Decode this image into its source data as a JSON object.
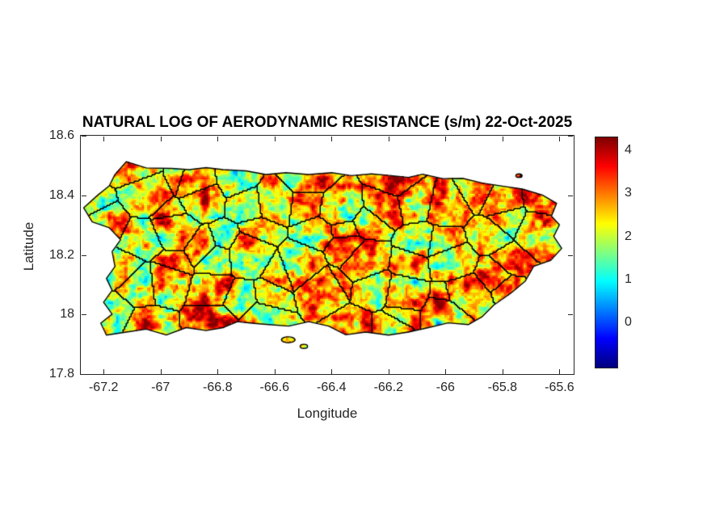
{
  "chart_data": {
    "type": "heatmap",
    "title": "NATURAL LOG OF AERODYNAMIC RESISTANCE (s/m) 22-Oct-2025",
    "date": "22-Oct-2025",
    "quantity": "Natural log of aerodynamic resistance",
    "units": "s/m",
    "xlabel": "Longitude",
    "ylabel": "Latitude",
    "xlim": [
      -67.28,
      -65.55
    ],
    "ylim": [
      17.8,
      18.6
    ],
    "x_ticks": [
      -67.2,
      -67,
      -66.8,
      -66.6,
      -66.4,
      -66.2,
      -66,
      -65.8,
      -65.6
    ],
    "x_tick_labels": [
      "-67.2",
      "-67",
      "-66.8",
      "-66.6",
      "-66.4",
      "-66.2",
      "-66",
      "-65.8",
      "-65.6"
    ],
    "y_ticks": [
      17.8,
      18,
      18.2,
      18.4,
      18.6
    ],
    "y_tick_labels": [
      "17.8",
      "18",
      "18.2",
      "18.4",
      "18.6"
    ],
    "grid": false,
    "region": "Puerto Rico with municipality boundaries",
    "colorbar": {
      "position": "right",
      "ticks": [
        0,
        1,
        2,
        3,
        4
      ],
      "tick_labels": [
        "0",
        "1",
        "2",
        "3",
        "4"
      ],
      "cmin": -1.05,
      "cmax": 4.3,
      "colormap": "jet",
      "stops": [
        "#00008F",
        "#0000FF",
        "#00FFFF",
        "#7FFF7F",
        "#FFFF00",
        "#FF0000",
        "#7F0000"
      ]
    },
    "value_field": {
      "mean": 2.45,
      "octaves": [
        [
          26,
          1.3
        ],
        [
          9,
          1.0
        ],
        [
          3.5,
          0.6
        ]
      ],
      "clamp": [
        -0.9,
        4.28
      ],
      "seed": 1234
    },
    "map": {
      "coast_color": "#000000",
      "boundary_color": "#000000",
      "seed_grid": [
        14,
        6
      ],
      "mainland": [
        [
          -67.16,
          18.47
        ],
        [
          -67.12,
          18.513
        ],
        [
          -67.05,
          18.492
        ],
        [
          -66.96,
          18.49
        ],
        [
          -66.9,
          18.486
        ],
        [
          -66.84,
          18.493
        ],
        [
          -66.78,
          18.486
        ],
        [
          -66.7,
          18.482
        ],
        [
          -66.63,
          18.47
        ],
        [
          -66.56,
          18.476
        ],
        [
          -66.48,
          18.47
        ],
        [
          -66.4,
          18.476
        ],
        [
          -66.33,
          18.466
        ],
        [
          -66.26,
          18.472
        ],
        [
          -66.19,
          18.466
        ],
        [
          -66.13,
          18.46
        ],
        [
          -66.08,
          18.471
        ],
        [
          -66.01,
          18.456
        ],
        [
          -65.94,
          18.457
        ],
        [
          -65.87,
          18.441
        ],
        [
          -65.8,
          18.431
        ],
        [
          -65.73,
          18.421
        ],
        [
          -65.66,
          18.401
        ],
        [
          -65.61,
          18.373
        ],
        [
          -65.628,
          18.33
        ],
        [
          -65.6,
          18.301
        ],
        [
          -65.62,
          18.262
        ],
        [
          -65.592,
          18.222
        ],
        [
          -65.63,
          18.182
        ],
        [
          -65.69,
          18.162
        ],
        [
          -65.72,
          18.112
        ],
        [
          -65.77,
          18.072
        ],
        [
          -65.83,
          18.032
        ],
        [
          -65.872,
          17.992
        ],
        [
          -65.92,
          17.966
        ],
        [
          -65.99,
          17.972
        ],
        [
          -66.06,
          17.956
        ],
        [
          -66.13,
          17.941
        ],
        [
          -66.2,
          17.931
        ],
        [
          -66.28,
          17.941
        ],
        [
          -66.35,
          17.932
        ],
        [
          -66.41,
          17.961
        ],
        [
          -66.48,
          17.976
        ],
        [
          -66.55,
          17.961
        ],
        [
          -66.62,
          17.966
        ],
        [
          -66.68,
          17.971
        ],
        [
          -66.73,
          17.976
        ],
        [
          -66.78,
          17.956
        ],
        [
          -66.84,
          17.946
        ],
        [
          -66.91,
          17.956
        ],
        [
          -66.98,
          17.931
        ],
        [
          -67.05,
          17.951
        ],
        [
          -67.12,
          17.941
        ],
        [
          -67.19,
          17.931
        ],
        [
          -67.21,
          17.971
        ],
        [
          -67.17,
          18.001
        ],
        [
          -67.2,
          18.041
        ],
        [
          -67.17,
          18.081
        ],
        [
          -67.19,
          18.121
        ],
        [
          -67.16,
          18.161
        ],
        [
          -67.17,
          18.211
        ],
        [
          -67.14,
          18.251
        ],
        [
          -67.18,
          18.291
        ],
        [
          -67.24,
          18.311
        ],
        [
          -67.27,
          18.358
        ],
        [
          -67.22,
          18.401
        ],
        [
          -67.18,
          18.432
        ]
      ],
      "islets": [
        [
          -66.552,
          17.915,
          0.024,
          0.01
        ],
        [
          -66.497,
          17.893,
          0.013,
          0.007
        ],
        [
          -65.742,
          18.466,
          0.011,
          0.006
        ]
      ]
    }
  }
}
